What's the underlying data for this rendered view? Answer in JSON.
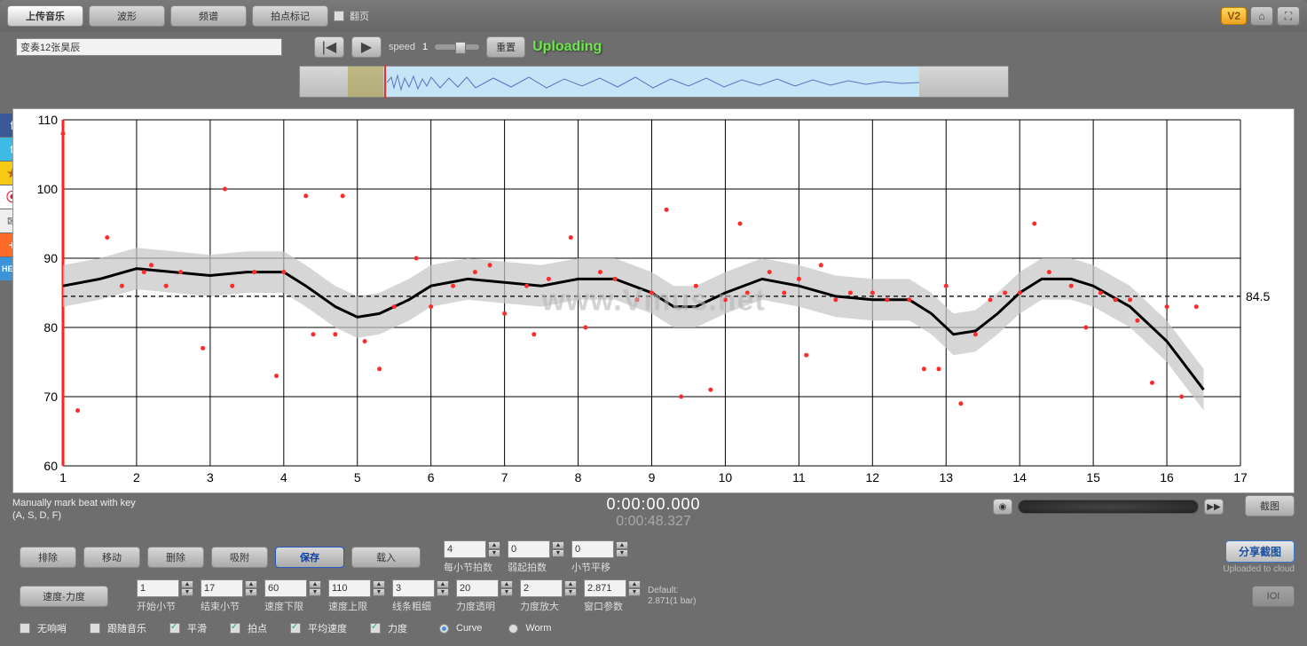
{
  "topTabs": {
    "upload": "上传音乐",
    "wave": "波形",
    "spectrum": "频谱",
    "beatmark": "拍点标记",
    "flip": "翻页"
  },
  "fileName": "变奏12张昊辰",
  "speedLabel": "speed",
  "speedValue": "1",
  "resetBtn": "重置",
  "uploading": "Uploading",
  "v2": "V2",
  "watermark": "www.Vmus.net",
  "chart": {
    "xlim": [
      1,
      17
    ],
    "ylim": [
      60,
      110
    ],
    "xticks": [
      1,
      2,
      3,
      4,
      5,
      6,
      7,
      8,
      9,
      10,
      11,
      12,
      13,
      14,
      15,
      16,
      17
    ],
    "yticks": [
      60,
      70,
      80,
      90,
      100,
      110
    ],
    "refValue": 84.5,
    "axis_fontsize": 14,
    "grid_color": "#000000",
    "bg_color": "#ffffff",
    "band_fill": "#c4c4c4",
    "curve_color": "#000000",
    "point_color": "#ff2a2a",
    "ref_color": "#222222",
    "points": [
      [
        1.0,
        108
      ],
      [
        1.2,
        68
      ],
      [
        1.6,
        93
      ],
      [
        1.8,
        86
      ],
      [
        2.1,
        88
      ],
      [
        2.2,
        89
      ],
      [
        2.4,
        86
      ],
      [
        2.6,
        88
      ],
      [
        2.9,
        77
      ],
      [
        3.2,
        100
      ],
      [
        3.3,
        86
      ],
      [
        3.6,
        88
      ],
      [
        3.9,
        73
      ],
      [
        4.0,
        88
      ],
      [
        4.3,
        99
      ],
      [
        4.4,
        79
      ],
      [
        4.7,
        79
      ],
      [
        4.8,
        99
      ],
      [
        5.1,
        78
      ],
      [
        5.3,
        74
      ],
      [
        5.5,
        83
      ],
      [
        5.8,
        90
      ],
      [
        6.0,
        83
      ],
      [
        6.3,
        86
      ],
      [
        6.6,
        88
      ],
      [
        6.8,
        89
      ],
      [
        7.0,
        82
      ],
      [
        7.3,
        86
      ],
      [
        7.4,
        79
      ],
      [
        7.6,
        87
      ],
      [
        7.9,
        93
      ],
      [
        8.1,
        80
      ],
      [
        8.3,
        88
      ],
      [
        8.5,
        87
      ],
      [
        8.8,
        84
      ],
      [
        9.0,
        85
      ],
      [
        9.2,
        97
      ],
      [
        9.4,
        70
      ],
      [
        9.6,
        86
      ],
      [
        9.8,
        71
      ],
      [
        10.0,
        84
      ],
      [
        10.2,
        95
      ],
      [
        10.3,
        85
      ],
      [
        10.6,
        88
      ],
      [
        10.8,
        85
      ],
      [
        11.0,
        87
      ],
      [
        11.1,
        76
      ],
      [
        11.3,
        89
      ],
      [
        11.5,
        84
      ],
      [
        11.7,
        85
      ],
      [
        12.0,
        85
      ],
      [
        12.2,
        84
      ],
      [
        12.5,
        84
      ],
      [
        12.7,
        74
      ],
      [
        12.9,
        74
      ],
      [
        13.0,
        86
      ],
      [
        13.2,
        69
      ],
      [
        13.4,
        79
      ],
      [
        13.6,
        84
      ],
      [
        13.8,
        85
      ],
      [
        14.0,
        85
      ],
      [
        14.2,
        95
      ],
      [
        14.4,
        88
      ],
      [
        14.7,
        86
      ],
      [
        14.9,
        80
      ],
      [
        15.1,
        85
      ],
      [
        15.3,
        84
      ],
      [
        15.5,
        84
      ],
      [
        15.6,
        81
      ],
      [
        15.8,
        72
      ],
      [
        16.0,
        83
      ],
      [
        16.2,
        70
      ],
      [
        16.4,
        83
      ]
    ],
    "curve": [
      [
        1.0,
        86
      ],
      [
        1.5,
        87
      ],
      [
        2.0,
        88.5
      ],
      [
        2.5,
        88
      ],
      [
        3.0,
        87.5
      ],
      [
        3.5,
        88
      ],
      [
        4.0,
        88
      ],
      [
        4.3,
        86
      ],
      [
        4.7,
        83
      ],
      [
        5.0,
        81.5
      ],
      [
        5.3,
        82
      ],
      [
        5.7,
        84
      ],
      [
        6.0,
        86
      ],
      [
        6.5,
        87
      ],
      [
        7.0,
        86.5
      ],
      [
        7.5,
        86
      ],
      [
        8.0,
        87
      ],
      [
        8.5,
        87
      ],
      [
        9.0,
        85
      ],
      [
        9.3,
        83
      ],
      [
        9.6,
        83
      ],
      [
        10.0,
        85
      ],
      [
        10.5,
        87
      ],
      [
        11.0,
        86
      ],
      [
        11.5,
        84.5
      ],
      [
        12.0,
        84
      ],
      [
        12.5,
        84
      ],
      [
        12.8,
        82
      ],
      [
        13.1,
        79
      ],
      [
        13.4,
        79.5
      ],
      [
        13.7,
        82
      ],
      [
        14.0,
        85
      ],
      [
        14.3,
        87
      ],
      [
        14.7,
        87
      ],
      [
        15.0,
        86
      ],
      [
        15.5,
        83
      ],
      [
        16.0,
        78
      ],
      [
        16.5,
        71
      ]
    ],
    "band_offset": 3.0
  },
  "hint": {
    "line1": "Manually mark beat with key",
    "line2": "(A, S, D, F)"
  },
  "time": {
    "main": "0:00:00.000",
    "sub": "0:00:48.327"
  },
  "screenshot": "截图",
  "row1": {
    "b1": "排除",
    "b2": "移动",
    "b3": "删除",
    "b4": "吸附",
    "b5": "保存",
    "b6": "载入",
    "s1": {
      "v": "4",
      "l": "每小节拍数"
    },
    "s2": {
      "v": "0",
      "l": "弱起拍数"
    },
    "s3": {
      "v": "0",
      "l": "小节平移"
    },
    "share": "分享截图",
    "uploaded": "Uploaded to cloud",
    "ioi": "IOI"
  },
  "row2": {
    "b1": "速度-力度",
    "s1": {
      "v": "1",
      "l": "开始小节"
    },
    "s2": {
      "v": "17",
      "l": "结束小节"
    },
    "s3": {
      "v": "60",
      "l": "速度下限"
    },
    "s4": {
      "v": "110",
      "l": "速度上限"
    },
    "s5": {
      "v": "3",
      "l": "线条粗细"
    },
    "s6": {
      "v": "20",
      "l": "力度透明"
    },
    "s7": {
      "v": "2",
      "l": "力度放大"
    },
    "s8": {
      "v": "2.871",
      "l": "窗口参数"
    },
    "def": "Default:",
    "defv": "2.871(1 bar)"
  },
  "row3": {
    "c1": "无响哨",
    "c2": "跟随音乐",
    "c3": "平滑",
    "c4": "拍点",
    "c5": "平均速度",
    "c6": "力度",
    "r1": "Curve",
    "r2": "Worm"
  }
}
